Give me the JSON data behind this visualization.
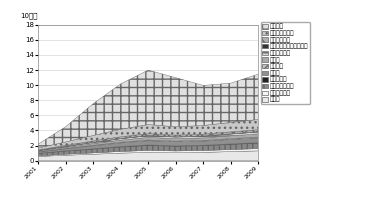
{
  "years": [
    2001,
    2002,
    2003,
    2004,
    2005,
    2006,
    2007,
    2008,
    2009
  ],
  "title_unit": "10億円",
  "ylim": [
    0,
    18
  ],
  "yticks": [
    0,
    2,
    4,
    6,
    8,
    10,
    12,
    14,
    16,
    18
  ],
  "series": [
    {
      "label": "車いす",
      "values": [
        0.55,
        0.72,
        0.85,
        1.0,
        1.1,
        1.05,
        1.1,
        1.2,
        1.3
      ],
      "color": "#e8e8e8",
      "hatch": ""
    },
    {
      "label": "車いす付属品",
      "values": [
        0.1,
        0.14,
        0.18,
        0.22,
        0.26,
        0.24,
        0.25,
        0.27,
        0.3
      ],
      "color": "#f5f5f5",
      "hatch": ""
    },
    {
      "label": "床ずれ防止用具",
      "values": [
        0.3,
        0.4,
        0.5,
        0.58,
        0.65,
        0.62,
        0.63,
        0.68,
        0.72
      ],
      "color": "#888888",
      "hatch": "|||"
    },
    {
      "label": "体位変換器",
      "values": [
        0.04,
        0.05,
        0.06,
        0.07,
        0.08,
        0.07,
        0.07,
        0.08,
        0.08
      ],
      "color": "#222222",
      "hatch": ""
    },
    {
      "label": "手すり",
      "values": [
        0.15,
        0.25,
        0.38,
        0.48,
        0.55,
        0.52,
        0.54,
        0.58,
        0.62
      ],
      "color": "#909090",
      "hatch": ""
    },
    {
      "label": "スロープ",
      "values": [
        0.03,
        0.05,
        0.07,
        0.09,
        0.1,
        0.1,
        0.1,
        0.11,
        0.12
      ],
      "color": "#c0c0c0",
      "hatch": "///"
    },
    {
      "label": "歩行器",
      "values": [
        0.1,
        0.16,
        0.22,
        0.28,
        0.34,
        0.32,
        0.33,
        0.37,
        0.4
      ],
      "color": "#aaaaaa",
      "hatch": ""
    },
    {
      "label": "歩行補助つえ",
      "values": [
        0.06,
        0.1,
        0.14,
        0.18,
        0.21,
        0.2,
        0.21,
        0.23,
        0.25
      ],
      "color": "#d8d8d8",
      "hatch": "---"
    },
    {
      "label": "痴呆性老人徘徨感知機器",
      "values": [
        0.02,
        0.03,
        0.04,
        0.04,
        0.05,
        0.04,
        0.04,
        0.04,
        0.04
      ],
      "color": "#333333",
      "hatch": ""
    },
    {
      "label": "移動用リフト",
      "values": [
        0.08,
        0.13,
        0.18,
        0.22,
        0.25,
        0.23,
        0.24,
        0.26,
        0.28
      ],
      "color": "#b0b0b0",
      "hatch": "xxx"
    },
    {
      "label": "特殊寡台付属品",
      "values": [
        0.25,
        0.45,
        0.72,
        1.0,
        1.2,
        1.1,
        1.15,
        1.25,
        1.35
      ],
      "color": "#c8c8c8",
      "hatch": "..."
    },
    {
      "label": "特殊寡台",
      "values": [
        0.5,
        2.0,
        4.2,
        6.0,
        7.2,
        6.5,
        5.3,
        5.2,
        6.0
      ],
      "color": "#e0e0e0",
      "hatch": "++"
    }
  ],
  "bg_color": "#ffffff",
  "grid_color": "#cccccc"
}
